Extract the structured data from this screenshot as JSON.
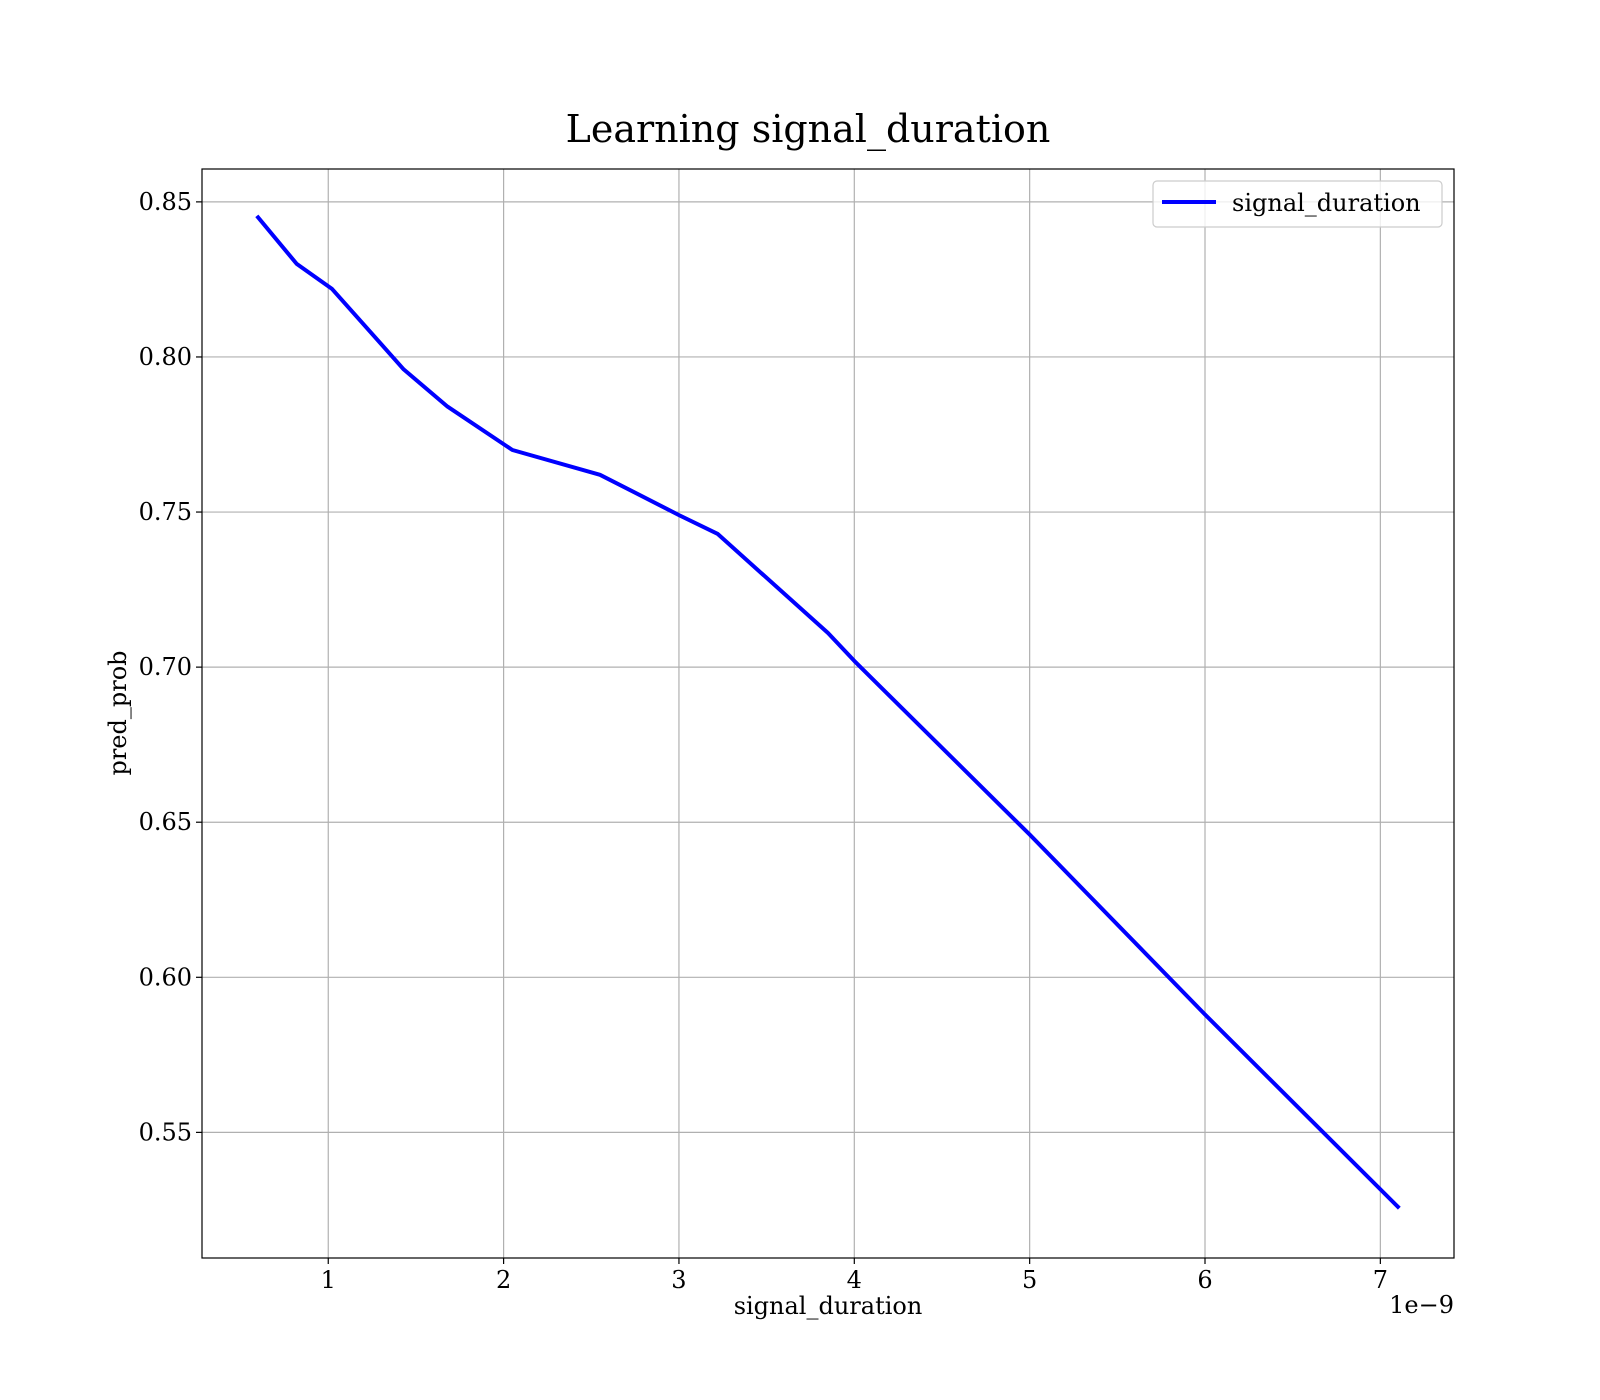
{
  "chart_data": {
    "type": "line",
    "title": "Learning signal_duration",
    "xlabel": "signal_duration",
    "ylabel": "pred_prob",
    "x_offset_text": "1e−9",
    "xlim": [
      0.28,
      7.42
    ],
    "ylim": [
      0.5095,
      0.8606
    ],
    "xticks": [
      1,
      2,
      3,
      4,
      5,
      6,
      7
    ],
    "xtick_labels": [
      "1",
      "2",
      "3",
      "4",
      "5",
      "6",
      "7"
    ],
    "yticks": [
      0.55,
      0.6,
      0.65,
      0.7,
      0.75,
      0.8,
      0.85
    ],
    "ytick_labels": [
      "0.55",
      "0.60",
      "0.65",
      "0.70",
      "0.75",
      "0.80",
      "0.85"
    ],
    "grid": true,
    "legend_position": "top-right",
    "series": [
      {
        "name": "signal_duration",
        "color": "#0000ff",
        "x": [
          0.6,
          0.82,
          1.02,
          1.43,
          1.68,
          2.05,
          2.55,
          3.0,
          3.22,
          3.85,
          4.0,
          5.0,
          6.0,
          7.1
        ],
        "y": [
          0.845,
          0.83,
          0.822,
          0.796,
          0.784,
          0.77,
          0.762,
          0.749,
          0.743,
          0.711,
          0.702,
          0.646,
          0.588,
          0.526
        ]
      }
    ]
  }
}
